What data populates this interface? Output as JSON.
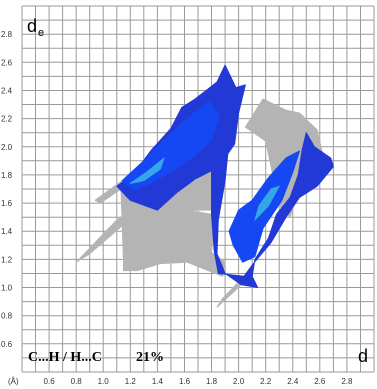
{
  "chart_data": {
    "type": "heatmap",
    "title": "",
    "y_axis_label_main": "d",
    "y_axis_label_sub": "e",
    "x_axis_label": "d",
    "x_axis_unit": "(Å)",
    "contact_label": "C...H / H...C",
    "contact_percent": "21%",
    "xlim": [
      0.4,
      3.0
    ],
    "ylim": [
      0.4,
      3.0
    ],
    "x_ticks": [
      "0.6",
      "0.8",
      "1.0",
      "1.2",
      "1.4",
      "1.6",
      "1.8",
      "2.0",
      "2.2",
      "2.4",
      "2.6",
      "2.8"
    ],
    "y_ticks": [
      "0.6",
      "0.8",
      "1.0",
      "1.2",
      "1.4",
      "1.6",
      "1.8",
      "2.0",
      "2.2",
      "2.4",
      "2.6",
      "2.8"
    ],
    "grid": true,
    "colors": {
      "full_fingerprint": "#b4b4b4",
      "highlight_low": "#2339d6",
      "highlight_high": "#1548f2",
      "highlight_hot": "#35a6e8",
      "grid": "#9a9a9a"
    },
    "regions": [
      {
        "name": "full-fingerprint",
        "color": "#b4b4b4",
        "points_di_de": [
          [
            1.15,
            1.18
          ],
          [
            1.35,
            1.42
          ],
          [
            1.62,
            1.55
          ],
          [
            1.8,
            1.52
          ],
          [
            1.81,
            1.35
          ],
          [
            1.8,
            1.25
          ],
          [
            1.9,
            1.18
          ],
          [
            1.88,
            1.08
          ],
          [
            1.62,
            1.18
          ],
          [
            1.42,
            1.17
          ],
          [
            1.25,
            1.12
          ],
          [
            1.15,
            1.12
          ]
        ]
      },
      {
        "name": "full-fingerprint",
        "color": "#b4b4b4",
        "points_di_de": [
          [
            1.13,
            1.74
          ],
          [
            1.4,
            1.55
          ],
          [
            1.55,
            1.68
          ],
          [
            1.8,
            1.83
          ],
          [
            1.8,
            1.55
          ],
          [
            1.62,
            1.55
          ],
          [
            1.35,
            1.42
          ],
          [
            1.15,
            1.18
          ]
        ]
      },
      {
        "name": "full-fingerprint",
        "color": "#b4b4b4",
        "points_di_de": [
          [
            2.18,
            2.34
          ],
          [
            2.35,
            2.26
          ],
          [
            2.45,
            2.24
          ],
          [
            2.58,
            2.12
          ],
          [
            2.62,
            1.95
          ],
          [
            2.55,
            1.85
          ],
          [
            2.45,
            1.72
          ],
          [
            2.38,
            1.5
          ],
          [
            2.3,
            1.58
          ],
          [
            2.2,
            2.04
          ],
          [
            2.05,
            2.14
          ]
        ]
      },
      {
        "name": "full-fingerprint",
        "color": "#b4b4b4",
        "points_di_de": [
          [
            0.8,
            1.18
          ],
          [
            1.1,
            1.48
          ],
          [
            1.2,
            1.55
          ],
          [
            1.13,
            1.43
          ],
          [
            0.9,
            1.24
          ]
        ]
      },
      {
        "name": "full-fingerprint",
        "color": "#b4b4b4",
        "points_di_de": [
          [
            0.94,
            1.62
          ],
          [
            1.14,
            1.76
          ],
          [
            1.13,
            1.7
          ],
          [
            0.98,
            1.6
          ]
        ]
      },
      {
        "name": "full-fingerprint",
        "color": "#b4b4b4",
        "points_di_de": [
          [
            1.84,
            0.86
          ],
          [
            2.02,
            1.02
          ],
          [
            2.06,
            1.08
          ],
          [
            1.98,
            1.02
          ],
          [
            1.88,
            0.92
          ]
        ]
      },
      {
        "name": "c-h-contacts",
        "color": "#2339d6",
        "points_di_de": [
          [
            1.1,
            1.72
          ],
          [
            1.22,
            1.8
          ],
          [
            1.35,
            1.97
          ],
          [
            1.5,
            2.13
          ],
          [
            1.58,
            2.28
          ],
          [
            1.68,
            2.34
          ],
          [
            1.84,
            2.46
          ],
          [
            1.9,
            2.58
          ],
          [
            1.98,
            2.42
          ],
          [
            2.05,
            2.44
          ],
          [
            2.0,
            2.24
          ],
          [
            1.97,
            2.02
          ],
          [
            1.92,
            1.95
          ],
          [
            1.9,
            1.76
          ],
          [
            1.85,
            1.48
          ],
          [
            1.84,
            1.24
          ],
          [
            1.9,
            1.1
          ],
          [
            2.02,
            1.02
          ],
          [
            2.14,
            1.0
          ],
          [
            2.1,
            1.08
          ],
          [
            2.12,
            1.2
          ],
          [
            2.22,
            1.35
          ],
          [
            2.28,
            1.52
          ],
          [
            2.38,
            1.64
          ],
          [
            2.44,
            1.8
          ],
          [
            2.47,
            1.98
          ],
          [
            2.5,
            2.1
          ],
          [
            2.56,
            2.0
          ],
          [
            2.68,
            1.92
          ],
          [
            2.7,
            1.86
          ],
          [
            2.58,
            1.72
          ],
          [
            2.45,
            1.64
          ],
          [
            2.35,
            1.5
          ],
          [
            2.24,
            1.32
          ],
          [
            2.1,
            1.16
          ],
          [
            2.04,
            1.08
          ],
          [
            1.85,
            1.1
          ],
          [
            1.82,
            1.26
          ],
          [
            1.8,
            1.52
          ],
          [
            1.8,
            1.83
          ],
          [
            1.68,
            1.77
          ],
          [
            1.55,
            1.68
          ],
          [
            1.4,
            1.55
          ],
          [
            1.2,
            1.62
          ]
        ]
      },
      {
        "name": "c-h-contacts",
        "color": "#1548f2",
        "points_di_de": [
          [
            1.14,
            1.76
          ],
          [
            1.3,
            1.9
          ],
          [
            1.45,
            2.05
          ],
          [
            1.62,
            2.2
          ],
          [
            1.78,
            2.32
          ],
          [
            1.86,
            2.22
          ],
          [
            1.8,
            2.05
          ],
          [
            1.68,
            1.94
          ],
          [
            1.5,
            1.82
          ],
          [
            1.35,
            1.74
          ],
          [
            1.22,
            1.7
          ]
        ]
      },
      {
        "name": "c-h-contacts",
        "color": "#1548f2",
        "points_di_de": [
          [
            1.93,
            1.4
          ],
          [
            1.96,
            1.3
          ],
          [
            2.03,
            1.18
          ],
          [
            2.12,
            1.22
          ],
          [
            2.18,
            1.42
          ],
          [
            2.32,
            1.62
          ],
          [
            2.4,
            1.82
          ],
          [
            2.45,
            1.97
          ],
          [
            2.35,
            1.92
          ],
          [
            2.22,
            1.78
          ],
          [
            2.1,
            1.62
          ],
          [
            2.0,
            1.55
          ]
        ]
      },
      {
        "name": "c-h-contacts",
        "color": "#35a6e8",
        "points_di_de": [
          [
            1.2,
            1.74
          ],
          [
            1.32,
            1.82
          ],
          [
            1.45,
            1.92
          ],
          [
            1.42,
            1.84
          ],
          [
            1.3,
            1.76
          ]
        ]
      },
      {
        "name": "c-h-contacts",
        "color": "#35a6e8",
        "points_di_de": [
          [
            2.12,
            1.48
          ],
          [
            2.22,
            1.58
          ],
          [
            2.3,
            1.72
          ],
          [
            2.24,
            1.7
          ],
          [
            2.15,
            1.58
          ]
        ]
      }
    ]
  }
}
